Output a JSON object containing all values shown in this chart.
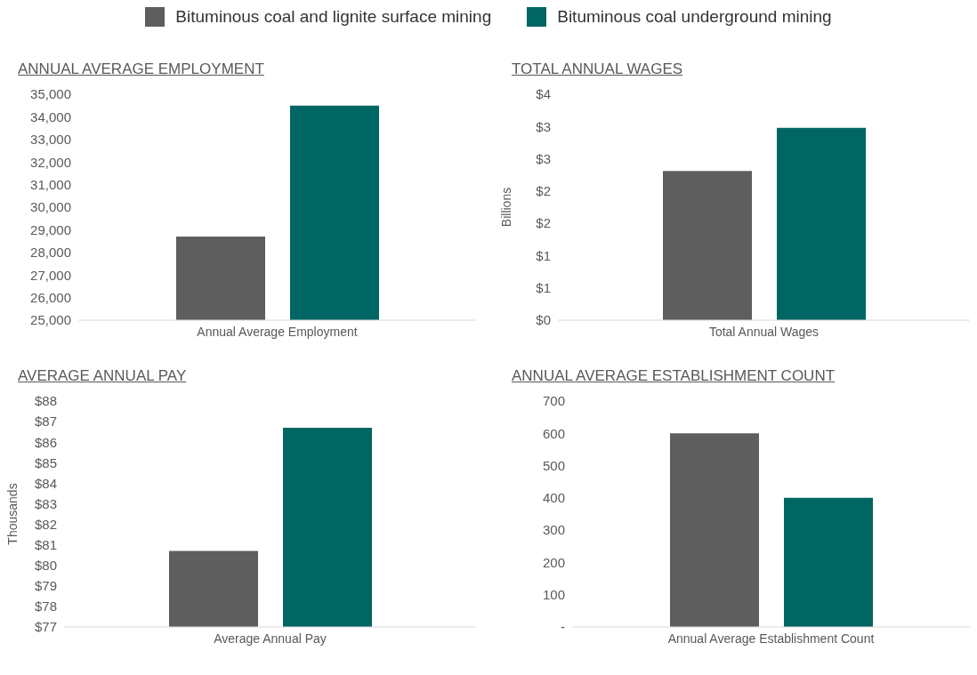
{
  "chart_data": [
    {
      "type": "bar",
      "title": "ANNUAL AVERAGE EMPLOYMENT",
      "categories": [
        "Annual Average Employment"
      ],
      "legend": "top",
      "series": [
        {
          "name": "Bituminous coal and lignite surface mining",
          "color": "#5e5e5e",
          "values": [
            28700
          ]
        },
        {
          "name": "Bituminous coal underground mining",
          "color": "#006663",
          "values": [
            34500
          ]
        }
      ],
      "ylim": [
        25000,
        35000
      ],
      "yticks": [
        {
          "value": 25000,
          "label": "25,000"
        },
        {
          "value": 26000,
          "label": "26,000"
        },
        {
          "value": 27000,
          "label": "27,000"
        },
        {
          "value": 28000,
          "label": "28,000"
        },
        {
          "value": 29000,
          "label": "29,000"
        },
        {
          "value": 30000,
          "label": "30,000"
        },
        {
          "value": 31000,
          "label": "31,000"
        },
        {
          "value": 32000,
          "label": "32,000"
        },
        {
          "value": 33000,
          "label": "33,000"
        },
        {
          "value": 34000,
          "label": "34,000"
        },
        {
          "value": 35000,
          "label": "35,000"
        }
      ],
      "grid": false
    },
    {
      "type": "bar",
      "title": "TOTAL ANNUAL WAGES",
      "ylabel": "Billions",
      "categories": [
        "Total Annual Wages"
      ],
      "series": [
        {
          "color": "#5e5e5e",
          "values": [
            2.31
          ]
        },
        {
          "color": "#006663",
          "values": [
            2.98
          ]
        }
      ],
      "ylim": [
        0,
        3.5
      ],
      "yticks": [
        {
          "value": 0,
          "label": "$0"
        },
        {
          "value": 0.5,
          "label": "$1"
        },
        {
          "value": 1,
          "label": "$1"
        },
        {
          "value": 1.5,
          "label": "$2"
        },
        {
          "value": 2,
          "label": "$2"
        },
        {
          "value": 2.5,
          "label": "$3"
        },
        {
          "value": 3,
          "label": "$3"
        },
        {
          "value": 3.5,
          "label": "$4"
        }
      ],
      "grid": false
    },
    {
      "type": "bar",
      "title": "AVERAGE ANNUAL PAY",
      "ylabel": "Thousands",
      "categories": [
        "Average Annual Pay"
      ],
      "series": [
        {
          "color": "#5e5e5e",
          "values": [
            80.7
          ]
        },
        {
          "color": "#006663",
          "values": [
            86.7
          ]
        }
      ],
      "ylim": [
        77,
        88
      ],
      "yticks": [
        {
          "value": 77,
          "label": "$77"
        },
        {
          "value": 78,
          "label": "$78"
        },
        {
          "value": 79,
          "label": "$79"
        },
        {
          "value": 80,
          "label": "$80"
        },
        {
          "value": 81,
          "label": "$81"
        },
        {
          "value": 82,
          "label": "$82"
        },
        {
          "value": 83,
          "label": "$83"
        },
        {
          "value": 84,
          "label": "$84"
        },
        {
          "value": 85,
          "label": "$85"
        },
        {
          "value": 86,
          "label": "$86"
        },
        {
          "value": 87,
          "label": "$87"
        },
        {
          "value": 88,
          "label": "$88"
        }
      ],
      "grid": false
    },
    {
      "type": "bar",
      "title": "ANNUAL AVERAGE ESTABLISHMENT COUNT",
      "categories": [
        "Annual Average Establishment Count"
      ],
      "series": [
        {
          "color": "#5e5e5e",
          "values": [
            600
          ]
        },
        {
          "color": "#006663",
          "values": [
            400
          ]
        }
      ],
      "ylim": [
        0,
        700
      ],
      "yticks": [
        {
          "value": 0,
          "label": "-"
        },
        100,
        200,
        300,
        400,
        500,
        600,
        700
      ],
      "grid": false
    }
  ]
}
